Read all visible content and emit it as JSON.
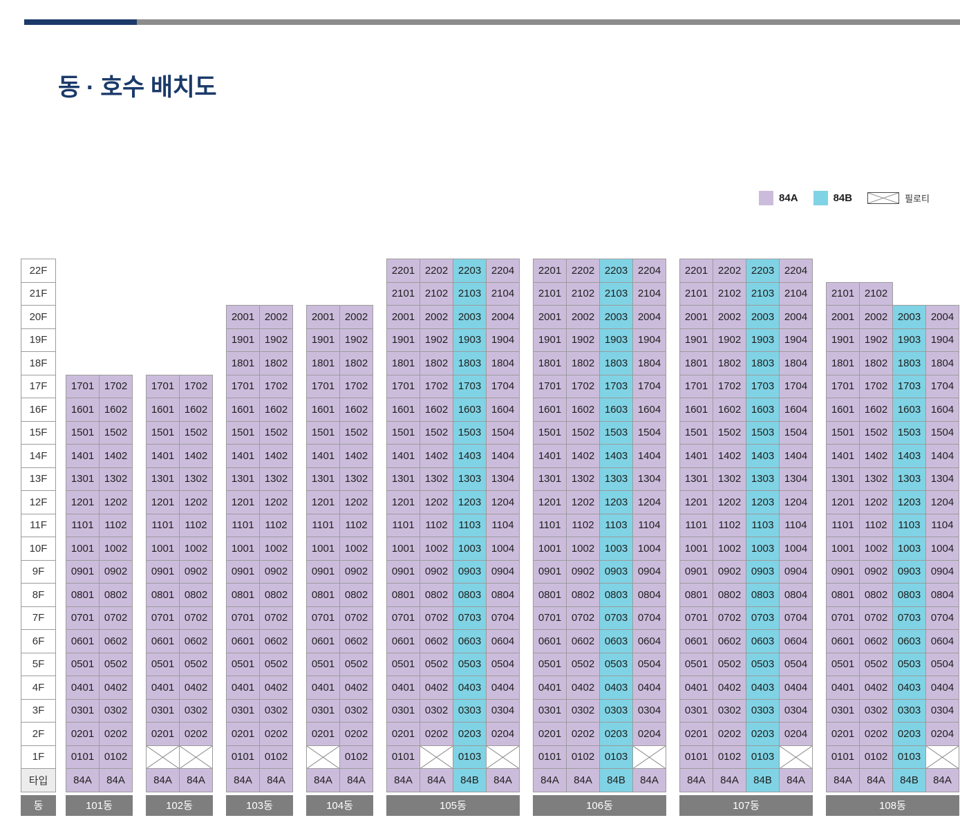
{
  "page": {
    "title": "동 · 호수 배치도"
  },
  "colors": {
    "type_84a": "#ccbcdc",
    "type_84b": "#7fd3e4",
    "building_bar": "#7e7e7e",
    "navy": "#1b3a6a",
    "top_bar_gray": "#8c8c8c",
    "cell_border": "#9b9b9b"
  },
  "legend": [
    {
      "label": "84A",
      "swatch": "84A"
    },
    {
      "label": "84B",
      "swatch": "84B"
    },
    {
      "label": "필로티",
      "swatch": "piloti"
    }
  ],
  "grid": {
    "floors": [
      "22F",
      "21F",
      "20F",
      "19F",
      "18F",
      "17F",
      "16F",
      "15F",
      "14F",
      "13F",
      "12F",
      "11F",
      "10F",
      "9F",
      "8F",
      "7F",
      "6F",
      "5F",
      "4F",
      "3F",
      "2F",
      "1F"
    ],
    "row_labels": {
      "type": "타입",
      "building": "동"
    },
    "piloti_marker": "X",
    "buildings": [
      {
        "name": "101동",
        "types": [
          "84A",
          "84A"
        ],
        "cells": [
          null,
          null,
          null,
          null,
          null,
          [
            "1701",
            "1702"
          ],
          [
            "1601",
            "1602"
          ],
          [
            "1501",
            "1502"
          ],
          [
            "1401",
            "1402"
          ],
          [
            "1301",
            "1302"
          ],
          [
            "1201",
            "1202"
          ],
          [
            "1101",
            "1102"
          ],
          [
            "1001",
            "1002"
          ],
          [
            "0901",
            "0902"
          ],
          [
            "0801",
            "0802"
          ],
          [
            "0701",
            "0702"
          ],
          [
            "0601",
            "0602"
          ],
          [
            "0501",
            "0502"
          ],
          [
            "0401",
            "0402"
          ],
          [
            "0301",
            "0302"
          ],
          [
            "0201",
            "0202"
          ],
          [
            "0101",
            "0102"
          ]
        ]
      },
      {
        "name": "102동",
        "types": [
          "84A",
          "84A"
        ],
        "cells": [
          null,
          null,
          null,
          null,
          null,
          [
            "1701",
            "1702"
          ],
          [
            "1601",
            "1602"
          ],
          [
            "1501",
            "1502"
          ],
          [
            "1401",
            "1402"
          ],
          [
            "1301",
            "1302"
          ],
          [
            "1201",
            "1202"
          ],
          [
            "1101",
            "1102"
          ],
          [
            "1001",
            "1002"
          ],
          [
            "0901",
            "0902"
          ],
          [
            "0801",
            "0802"
          ],
          [
            "0701",
            "0702"
          ],
          [
            "0601",
            "0602"
          ],
          [
            "0501",
            "0502"
          ],
          [
            "0401",
            "0402"
          ],
          [
            "0301",
            "0302"
          ],
          [
            "0201",
            "0202"
          ],
          [
            "X",
            "X"
          ]
        ]
      },
      {
        "name": "103동",
        "types": [
          "84A",
          "84A"
        ],
        "cells": [
          null,
          null,
          [
            "2001",
            "2002"
          ],
          [
            "1901",
            "1902"
          ],
          [
            "1801",
            "1802"
          ],
          [
            "1701",
            "1702"
          ],
          [
            "1601",
            "1602"
          ],
          [
            "1501",
            "1502"
          ],
          [
            "1401",
            "1402"
          ],
          [
            "1301",
            "1302"
          ],
          [
            "1201",
            "1202"
          ],
          [
            "1101",
            "1102"
          ],
          [
            "1001",
            "1002"
          ],
          [
            "0901",
            "0902"
          ],
          [
            "0801",
            "0802"
          ],
          [
            "0701",
            "0702"
          ],
          [
            "0601",
            "0602"
          ],
          [
            "0501",
            "0502"
          ],
          [
            "0401",
            "0402"
          ],
          [
            "0301",
            "0302"
          ],
          [
            "0201",
            "0202"
          ],
          [
            "0101",
            "0102"
          ]
        ]
      },
      {
        "name": "104동",
        "types": [
          "84A",
          "84A"
        ],
        "cells": [
          null,
          null,
          [
            "2001",
            "2002"
          ],
          [
            "1901",
            "1902"
          ],
          [
            "1801",
            "1802"
          ],
          [
            "1701",
            "1702"
          ],
          [
            "1601",
            "1602"
          ],
          [
            "1501",
            "1502"
          ],
          [
            "1401",
            "1402"
          ],
          [
            "1301",
            "1302"
          ],
          [
            "1201",
            "1202"
          ],
          [
            "1101",
            "1102"
          ],
          [
            "1001",
            "1002"
          ],
          [
            "0901",
            "0902"
          ],
          [
            "0801",
            "0802"
          ],
          [
            "0701",
            "0702"
          ],
          [
            "0601",
            "0602"
          ],
          [
            "0501",
            "0502"
          ],
          [
            "0401",
            "0402"
          ],
          [
            "0301",
            "0302"
          ],
          [
            "0201",
            "0202"
          ],
          [
            "X",
            "0102"
          ]
        ]
      },
      {
        "name": "105동",
        "types": [
          "84A",
          "84A",
          "84B",
          "84A"
        ],
        "cells": [
          [
            "2201",
            "2202",
            "2203",
            "2204"
          ],
          [
            "2101",
            "2102",
            "2103",
            "2104"
          ],
          [
            "2001",
            "2002",
            "2003",
            "2004"
          ],
          [
            "1901",
            "1902",
            "1903",
            "1904"
          ],
          [
            "1801",
            "1802",
            "1803",
            "1804"
          ],
          [
            "1701",
            "1702",
            "1703",
            "1704"
          ],
          [
            "1601",
            "1602",
            "1603",
            "1604"
          ],
          [
            "1501",
            "1502",
            "1503",
            "1504"
          ],
          [
            "1401",
            "1402",
            "1403",
            "1404"
          ],
          [
            "1301",
            "1302",
            "1303",
            "1304"
          ],
          [
            "1201",
            "1202",
            "1203",
            "1204"
          ],
          [
            "1101",
            "1102",
            "1103",
            "1104"
          ],
          [
            "1001",
            "1002",
            "1003",
            "1004"
          ],
          [
            "0901",
            "0902",
            "0903",
            "0904"
          ],
          [
            "0801",
            "0802",
            "0803",
            "0804"
          ],
          [
            "0701",
            "0702",
            "0703",
            "0704"
          ],
          [
            "0601",
            "0602",
            "0603",
            "0604"
          ],
          [
            "0501",
            "0502",
            "0503",
            "0504"
          ],
          [
            "0401",
            "0402",
            "0403",
            "0404"
          ],
          [
            "0301",
            "0302",
            "0303",
            "0304"
          ],
          [
            "0201",
            "0202",
            "0203",
            "0204"
          ],
          [
            "0101",
            "X",
            "0103",
            "X"
          ]
        ]
      },
      {
        "name": "106동",
        "types": [
          "84A",
          "84A",
          "84B",
          "84A"
        ],
        "cells": [
          [
            "2201",
            "2202",
            "2203",
            "2204"
          ],
          [
            "2101",
            "2102",
            "2103",
            "2104"
          ],
          [
            "2001",
            "2002",
            "2003",
            "2004"
          ],
          [
            "1901",
            "1902",
            "1903",
            "1904"
          ],
          [
            "1801",
            "1802",
            "1803",
            "1804"
          ],
          [
            "1701",
            "1702",
            "1703",
            "1704"
          ],
          [
            "1601",
            "1602",
            "1603",
            "1604"
          ],
          [
            "1501",
            "1502",
            "1503",
            "1504"
          ],
          [
            "1401",
            "1402",
            "1403",
            "1404"
          ],
          [
            "1301",
            "1302",
            "1303",
            "1304"
          ],
          [
            "1201",
            "1202",
            "1203",
            "1204"
          ],
          [
            "1101",
            "1102",
            "1103",
            "1104"
          ],
          [
            "1001",
            "1002",
            "1003",
            "1004"
          ],
          [
            "0901",
            "0902",
            "0903",
            "0904"
          ],
          [
            "0801",
            "0802",
            "0803",
            "0804"
          ],
          [
            "0701",
            "0702",
            "0703",
            "0704"
          ],
          [
            "0601",
            "0602",
            "0603",
            "0604"
          ],
          [
            "0501",
            "0502",
            "0503",
            "0504"
          ],
          [
            "0401",
            "0402",
            "0403",
            "0404"
          ],
          [
            "0301",
            "0302",
            "0303",
            "0304"
          ],
          [
            "0201",
            "0202",
            "0203",
            "0204"
          ],
          [
            "0101",
            "0102",
            "0103",
            "X"
          ]
        ]
      },
      {
        "name": "107동",
        "types": [
          "84A",
          "84A",
          "84B",
          "84A"
        ],
        "cells": [
          [
            "2201",
            "2202",
            "2203",
            "2204"
          ],
          [
            "2101",
            "2102",
            "2103",
            "2104"
          ],
          [
            "2001",
            "2002",
            "2003",
            "2004"
          ],
          [
            "1901",
            "1902",
            "1903",
            "1904"
          ],
          [
            "1801",
            "1802",
            "1803",
            "1804"
          ],
          [
            "1701",
            "1702",
            "1703",
            "1704"
          ],
          [
            "1601",
            "1602",
            "1603",
            "1604"
          ],
          [
            "1501",
            "1502",
            "1503",
            "1504"
          ],
          [
            "1401",
            "1402",
            "1403",
            "1404"
          ],
          [
            "1301",
            "1302",
            "1303",
            "1304"
          ],
          [
            "1201",
            "1202",
            "1203",
            "1204"
          ],
          [
            "1101",
            "1102",
            "1103",
            "1104"
          ],
          [
            "1001",
            "1002",
            "1003",
            "1004"
          ],
          [
            "0901",
            "0902",
            "0903",
            "0904"
          ],
          [
            "0801",
            "0802",
            "0803",
            "0804"
          ],
          [
            "0701",
            "0702",
            "0703",
            "0704"
          ],
          [
            "0601",
            "0602",
            "0603",
            "0604"
          ],
          [
            "0501",
            "0502",
            "0503",
            "0504"
          ],
          [
            "0401",
            "0402",
            "0403",
            "0404"
          ],
          [
            "0301",
            "0302",
            "0303",
            "0304"
          ],
          [
            "0201",
            "0202",
            "0203",
            "0204"
          ],
          [
            "0101",
            "0102",
            "0103",
            "X"
          ]
        ]
      },
      {
        "name": "108동",
        "types": [
          "84A",
          "84A",
          "84B",
          "84A"
        ],
        "cells": [
          null,
          [
            "2101",
            "2102",
            null,
            null
          ],
          [
            "2001",
            "2002",
            "2003",
            "2004"
          ],
          [
            "1901",
            "1902",
            "1903",
            "1904"
          ],
          [
            "1801",
            "1802",
            "1803",
            "1804"
          ],
          [
            "1701",
            "1702",
            "1703",
            "1704"
          ],
          [
            "1601",
            "1602",
            "1603",
            "1604"
          ],
          [
            "1501",
            "1502",
            "1503",
            "1504"
          ],
          [
            "1401",
            "1402",
            "1403",
            "1404"
          ],
          [
            "1301",
            "1302",
            "1303",
            "1304"
          ],
          [
            "1201",
            "1202",
            "1203",
            "1204"
          ],
          [
            "1101",
            "1102",
            "1103",
            "1104"
          ],
          [
            "1001",
            "1002",
            "1003",
            "1004"
          ],
          [
            "0901",
            "0902",
            "0903",
            "0904"
          ],
          [
            "0801",
            "0802",
            "0803",
            "0804"
          ],
          [
            "0701",
            "0702",
            "0703",
            "0704"
          ],
          [
            "0601",
            "0602",
            "0603",
            "0604"
          ],
          [
            "0501",
            "0502",
            "0503",
            "0504"
          ],
          [
            "0401",
            "0402",
            "0403",
            "0404"
          ],
          [
            "0301",
            "0302",
            "0303",
            "0304"
          ],
          [
            "0201",
            "0202",
            "0203",
            "0204"
          ],
          [
            "0101",
            "0102",
            "0103",
            "X"
          ]
        ]
      }
    ]
  }
}
